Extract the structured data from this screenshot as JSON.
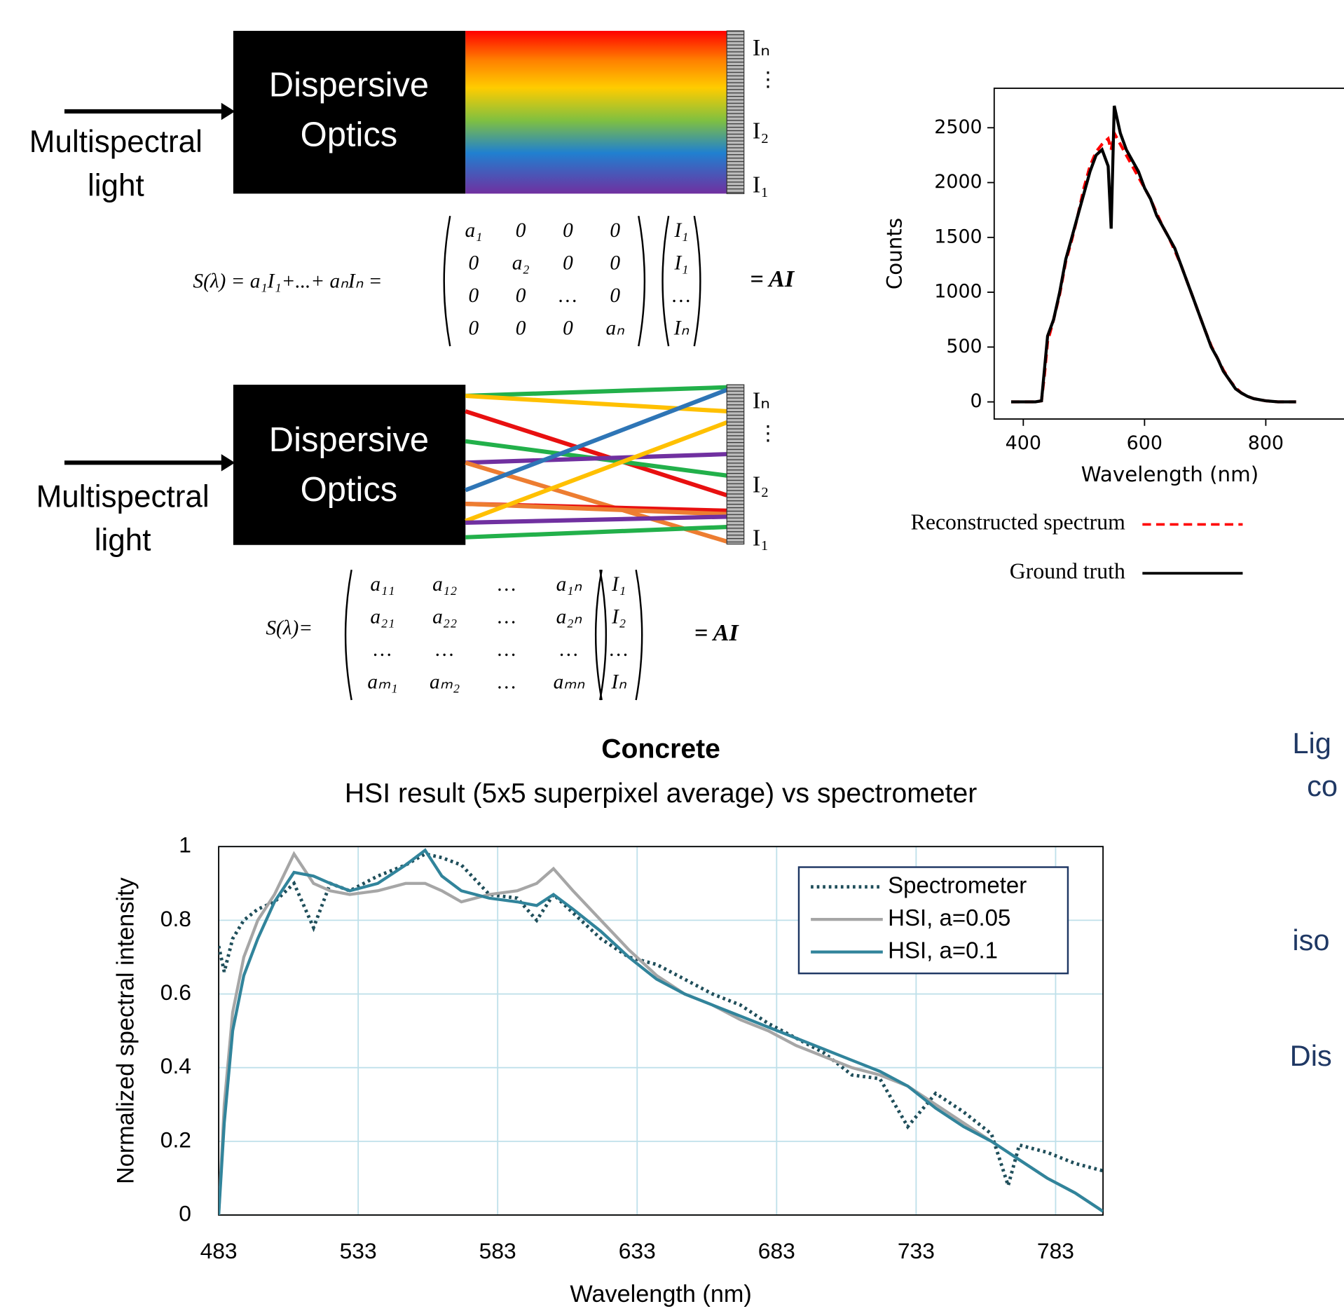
{
  "diagram": {
    "panels": [
      {
        "input_label": [
          "Multispectral",
          "light"
        ],
        "box_label": [
          "Dispersive",
          "Optics"
        ],
        "detector_labels": [
          "Iₙ",
          "⋮",
          "I₂",
          "I₁"
        ],
        "equation": {
          "lhs": "S(λ) = a₁I₁+...+ aₙIₙ =",
          "matrix": [
            [
              "a₁",
              "0",
              "0",
              "0"
            ],
            [
              "0",
              "a₂",
              "0",
              "0"
            ],
            [
              "0",
              "0",
              "…",
              "0"
            ],
            [
              "0",
              "0",
              "0",
              "aₙ"
            ]
          ],
          "vector": [
            "I₁",
            "I₁",
            "…",
            "Iₙ"
          ],
          "rhs": "= AI"
        }
      },
      {
        "input_label": [
          "Multispectral",
          "light"
        ],
        "box_label": [
          "Dispersive",
          "Optics"
        ],
        "detector_labels": [
          "Iₙ",
          "⋮",
          "I₂",
          "I₁"
        ],
        "equation": {
          "lhs": "S(λ)=",
          "matrix": [
            [
              "a₁₁",
              "a₁₂",
              "…",
              "a₁ₙ"
            ],
            [
              "a₂₁",
              "a₂₂",
              "…",
              "a₂ₙ"
            ],
            [
              "…",
              "…",
              "…",
              "…"
            ],
            [
              "aₘ₁",
              "aₘ₂",
              "…",
              "aₘₙ"
            ]
          ],
          "vector": [
            "I₁",
            "I₂",
            "…",
            "Iₙ"
          ],
          "rhs": "= AI"
        }
      }
    ]
  },
  "side_text": [
    "Lig",
    "co",
    "iso",
    "Dis"
  ],
  "chart_data": [
    {
      "type": "line",
      "xlabel": "Wavelength (nm)",
      "ylabel": "Counts",
      "x": [
        380,
        400,
        420,
        430,
        435,
        440,
        450,
        460,
        470,
        480,
        490,
        500,
        510,
        520,
        530,
        540,
        545,
        550,
        560,
        570,
        580,
        590,
        600,
        610,
        620,
        630,
        640,
        650,
        660,
        670,
        680,
        690,
        700,
        710,
        720,
        730,
        740,
        750,
        760,
        770,
        780,
        790,
        800,
        810,
        820,
        840,
        850
      ],
      "series": [
        {
          "name": "Reconstructed spectrum",
          "color": "#ff0000",
          "style": "dashed",
          "values": [
            0,
            0,
            0,
            10,
            250,
            550,
            750,
            980,
            1280,
            1480,
            1700,
            1950,
            2150,
            2280,
            2350,
            2400,
            2300,
            2450,
            2350,
            2250,
            2150,
            2050,
            1950,
            1850,
            1720,
            1600,
            1500,
            1380,
            1250,
            1100,
            950,
            800,
            650,
            510,
            400,
            290,
            200,
            130,
            80,
            50,
            30,
            20,
            10,
            5,
            0,
            0,
            0
          ]
        },
        {
          "name": "Ground truth",
          "color": "#000000",
          "style": "solid",
          "values": [
            0,
            0,
            0,
            10,
            300,
            600,
            750,
            1000,
            1300,
            1500,
            1700,
            1900,
            2100,
            2250,
            2300,
            2150,
            1580,
            2700,
            2450,
            2300,
            2200,
            2100,
            1950,
            1850,
            1700,
            1600,
            1500,
            1400,
            1250,
            1100,
            950,
            800,
            650,
            500,
            400,
            280,
            200,
            120,
            80,
            50,
            30,
            20,
            10,
            5,
            0,
            0,
            0
          ]
        }
      ],
      "xlim": [
        352,
        940
      ],
      "ylim": [
        -156,
        2860
      ],
      "xticks": [
        400,
        600,
        800
      ],
      "yticks": [
        0,
        500,
        1000,
        1500,
        2000,
        2500
      ],
      "grid": false,
      "legend": "lower center"
    },
    {
      "type": "line",
      "title": "Concrete",
      "subtitle": "HSI result (5x5 superpixel average) vs spectrometer",
      "xlabel": "Wavelength (nm)",
      "ylabel": "Normalized spectral intensity",
      "x": [
        483,
        485,
        488,
        492,
        497,
        503,
        510,
        517,
        523,
        530,
        540,
        550,
        557,
        563,
        570,
        580,
        590,
        597,
        603,
        610,
        620,
        630,
        640,
        650,
        660,
        670,
        680,
        690,
        700,
        710,
        720,
        730,
        740,
        750,
        760,
        766,
        770,
        780,
        790,
        800
      ],
      "series": [
        {
          "name": "Spectrometer",
          "color": "#1f4e5a",
          "style": "dotted",
          "values": [
            0.73,
            0.66,
            0.75,
            0.8,
            0.83,
            0.85,
            0.9,
            0.78,
            0.9,
            0.88,
            0.92,
            0.95,
            0.98,
            0.97,
            0.95,
            0.87,
            0.86,
            0.8,
            0.87,
            0.82,
            0.75,
            0.7,
            0.68,
            0.64,
            0.6,
            0.57,
            0.52,
            0.48,
            0.44,
            0.38,
            0.37,
            0.24,
            0.33,
            0.28,
            0.22,
            0.08,
            0.19,
            0.17,
            0.14,
            0.12
          ]
        },
        {
          "name": "HSI, a=0.05",
          "color": "#a6a6a6",
          "style": "solid",
          "values": [
            0,
            0.3,
            0.55,
            0.7,
            0.8,
            0.87,
            0.98,
            0.9,
            0.88,
            0.87,
            0.88,
            0.9,
            0.9,
            0.88,
            0.85,
            0.87,
            0.88,
            0.9,
            0.94,
            0.88,
            0.8,
            0.72,
            0.65,
            0.6,
            0.57,
            0.53,
            0.5,
            0.46,
            0.43,
            0.4,
            0.38,
            0.35,
            0.3,
            0.25,
            0.2,
            0.17,
            0.15,
            0.1,
            0.06,
            0.01
          ]
        },
        {
          "name": "HSI, a=0.1",
          "color": "#31849b",
          "style": "solid",
          "values": [
            0,
            0.25,
            0.5,
            0.65,
            0.75,
            0.85,
            0.93,
            0.92,
            0.9,
            0.88,
            0.9,
            0.95,
            0.99,
            0.92,
            0.88,
            0.86,
            0.85,
            0.84,
            0.87,
            0.83,
            0.77,
            0.7,
            0.64,
            0.6,
            0.57,
            0.54,
            0.51,
            0.48,
            0.45,
            0.42,
            0.39,
            0.35,
            0.29,
            0.24,
            0.2,
            0.17,
            0.15,
            0.1,
            0.06,
            0.01
          ]
        }
      ],
      "xlim": [
        483,
        800
      ],
      "ylim": [
        0,
        1
      ],
      "xticks": [
        483,
        533,
        583,
        633,
        683,
        733,
        783
      ],
      "yticks": [
        0,
        0.2,
        0.4,
        0.6,
        0.8,
        1
      ],
      "grid": true,
      "legend": "upper right"
    }
  ]
}
